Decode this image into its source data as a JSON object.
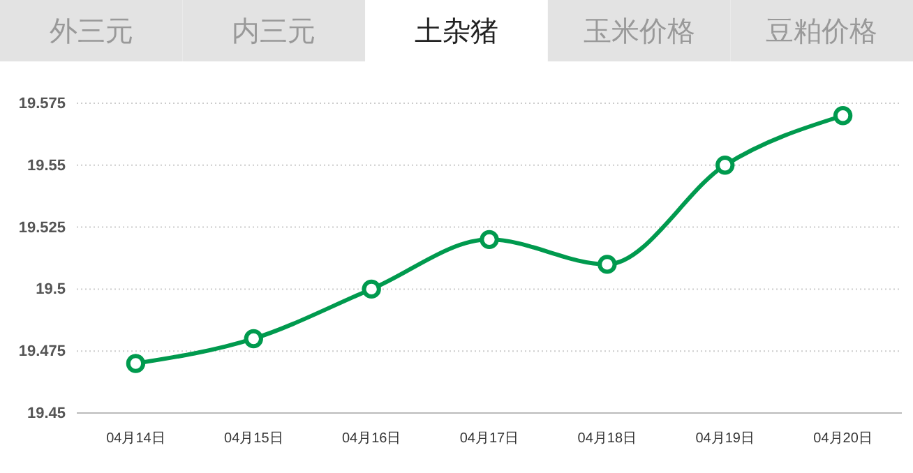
{
  "chart_data": {
    "type": "line",
    "categories": [
      "04月14日",
      "04月15日",
      "04月16日",
      "04月17日",
      "04月18日",
      "04月19日",
      "04月20日"
    ],
    "series": [
      {
        "color": "#009a4e",
        "values": [
          19.47,
          19.48,
          19.5,
          19.52,
          19.51,
          19.55,
          19.57
        ]
      }
    ],
    "ylim": [
      19.45,
      19.575
    ],
    "yticks": [
      19.45,
      19.475,
      19.5,
      19.525,
      19.55,
      19.575
    ],
    "grid": "y",
    "marker": "circle",
    "line_style": "solid",
    "annotations": [
      "外三元",
      "内三元",
      "土杂猪",
      "玉米价格",
      "豆粕价格"
    ]
  }
}
